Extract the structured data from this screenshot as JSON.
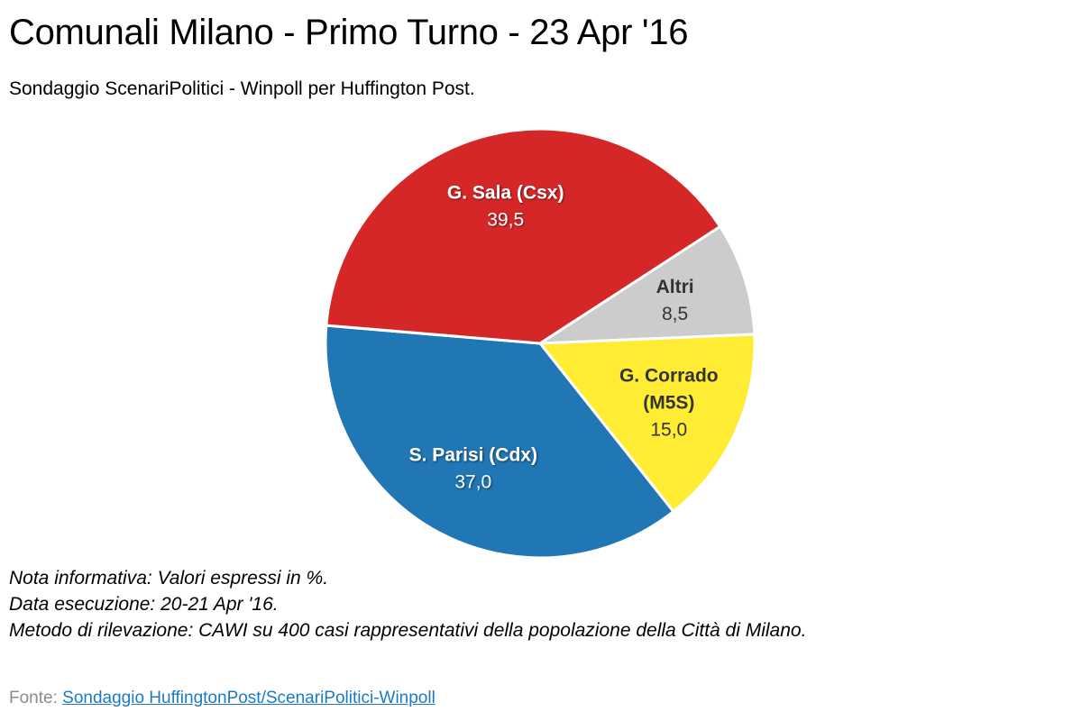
{
  "title": "Comunali Milano - Primo Turno - 23 Apr '16",
  "subtitle": "Sondaggio ScenariPolitici - Winpoll per Huffington Post.",
  "notes": {
    "line1": "Nota informativa: Valori espressi in %.",
    "line2": "Data esecuzione: 20-21 Apr '16.",
    "line3": "Metodo di rilevazione: CAWI su 400 casi rappresentativi della popolazione della Città di Milano."
  },
  "source": {
    "label": "Fonte: ",
    "link_text": "Sondaggio HuffingtonPost/ScenariPolitici-Winpoll"
  },
  "chart_data": {
    "type": "pie",
    "title": "Comunali Milano - Primo Turno - 23 Apr '16",
    "slices": [
      {
        "label": "Altri",
        "label_lines": [
          "Altri"
        ],
        "value": 8.5,
        "value_label": "8,5",
        "color": "#cccccc",
        "text_color": "#333333"
      },
      {
        "label": "G. Corrado (M5S)",
        "label_lines": [
          "G. Corrado",
          "(M5S)"
        ],
        "value": 15.0,
        "value_label": "15,0",
        "color": "#ffec33",
        "text_color": "#333333"
      },
      {
        "label": "S. Parisi (Cdx)",
        "label_lines": [
          "S. Parisi (Cdx)"
        ],
        "value": 37.0,
        "value_label": "37,0",
        "color": "#2077b4",
        "text_color": "#ffffff"
      },
      {
        "label": "G. Sala (Csx)",
        "label_lines": [
          "G. Sala (Csx)"
        ],
        "value": 39.5,
        "value_label": "39,5",
        "color": "#d62728",
        "text_color": "#ffffff"
      }
    ],
    "start_angle_deg": 57,
    "direction": "clockwise",
    "legend": "none",
    "unit": "%"
  }
}
